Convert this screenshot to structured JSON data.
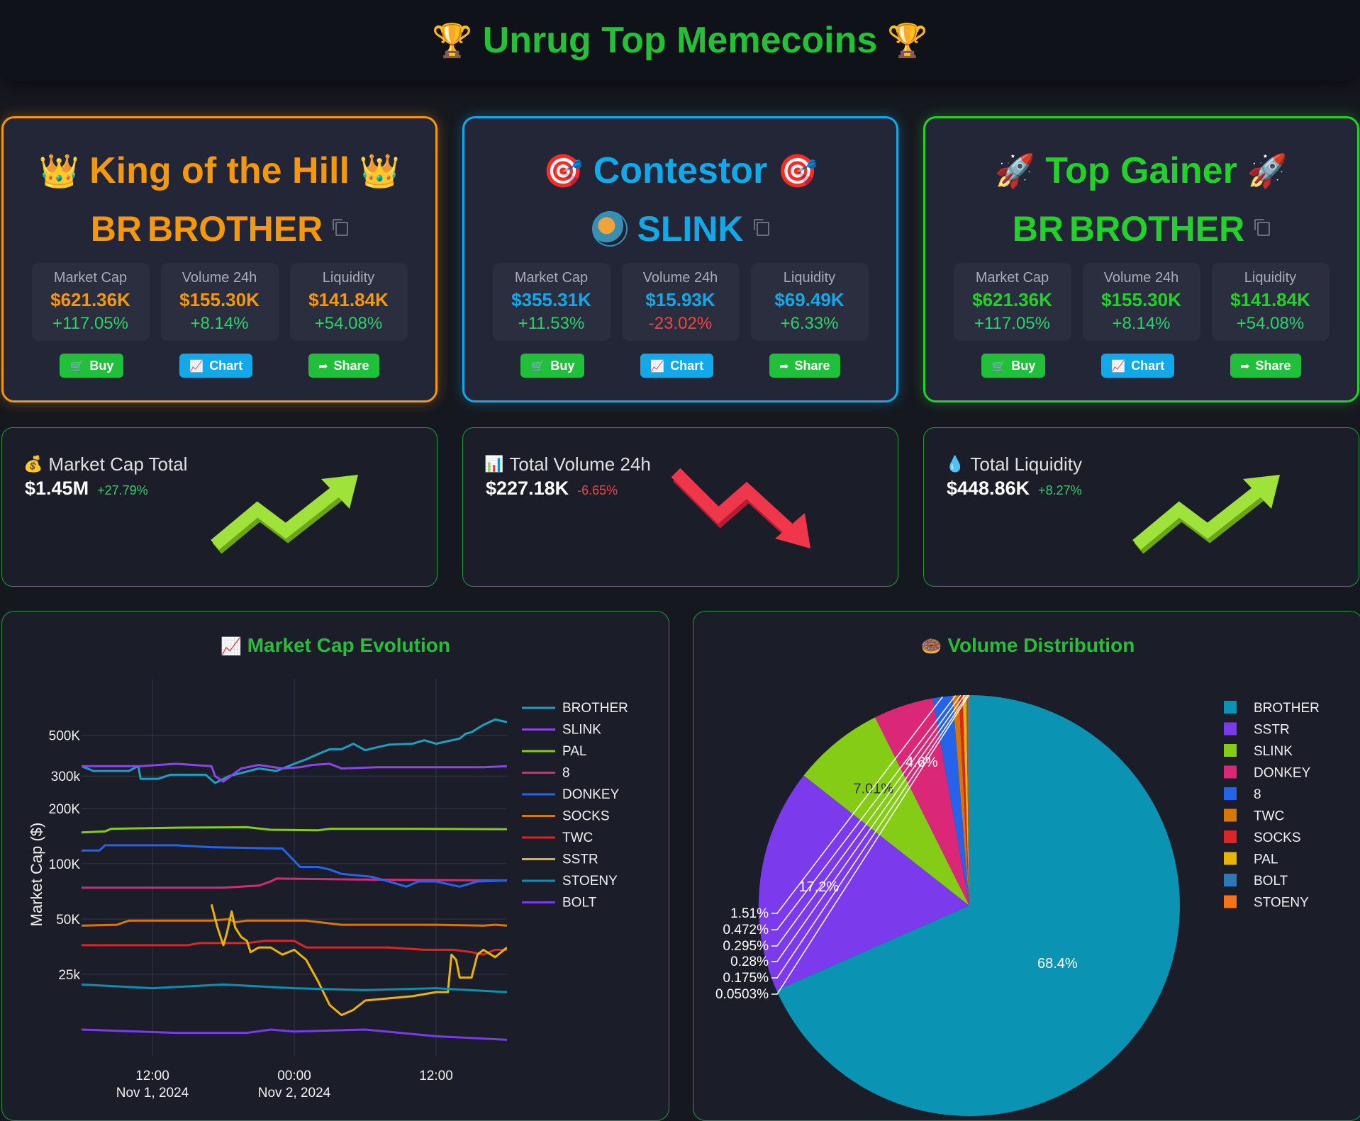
{
  "header": {
    "title": "Unrug Top Memecoins",
    "icon_left": "🏆",
    "icon_right": "🏆"
  },
  "cards": [
    {
      "id": "king",
      "title": "King of the Hill",
      "emoji": "👑",
      "coin_prefix": "BR",
      "coin": "BROTHER",
      "metrics": [
        {
          "label": "Market Cap",
          "value": "$621.36K",
          "change": "+117.05%",
          "dir": "pos"
        },
        {
          "label": "Volume 24h",
          "value": "$155.30K",
          "change": "+8.14%",
          "dir": "pos"
        },
        {
          "label": "Liquidity",
          "value": "$141.84K",
          "change": "+54.08%",
          "dir": "pos"
        }
      ],
      "buttons": {
        "buy": "Buy",
        "chart": "Chart",
        "share": "Share"
      }
    },
    {
      "id": "cont",
      "title": "Contestor",
      "emoji": "🎯",
      "coin_prefix": "",
      "coin": "SLINK",
      "metrics": [
        {
          "label": "Market Cap",
          "value": "$355.31K",
          "change": "+11.53%",
          "dir": "pos"
        },
        {
          "label": "Volume 24h",
          "value": "$15.93K",
          "change": "-23.02%",
          "dir": "neg"
        },
        {
          "label": "Liquidity",
          "value": "$69.49K",
          "change": "+6.33%",
          "dir": "pos"
        }
      ],
      "buttons": {
        "buy": "Buy",
        "chart": "Chart",
        "share": "Share"
      }
    },
    {
      "id": "gain",
      "title": "Top Gainer",
      "emoji": "🚀",
      "coin_prefix": "BR",
      "coin": "BROTHER",
      "metrics": [
        {
          "label": "Market Cap",
          "value": "$621.36K",
          "change": "+117.05%",
          "dir": "pos"
        },
        {
          "label": "Volume 24h",
          "value": "$155.30K",
          "change": "+8.14%",
          "dir": "pos"
        },
        {
          "label": "Liquidity",
          "value": "$141.84K",
          "change": "+54.08%",
          "dir": "pos"
        }
      ],
      "buttons": {
        "buy": "Buy",
        "chart": "Chart",
        "share": "Share"
      }
    }
  ],
  "stats": [
    {
      "icon": "💰",
      "label": "Market Cap Total",
      "value": "$1.45M",
      "change": "+27.79%",
      "dir": "up"
    },
    {
      "icon": "📊",
      "label": "Total Volume 24h",
      "value": "$227.18K",
      "change": "-6.65%",
      "dir": "down"
    },
    {
      "icon": "💧",
      "label": "Total Liquidity",
      "value": "$448.86K",
      "change": "+8.27%",
      "dir": "up"
    }
  ],
  "colors": {
    "king": "#f5980b",
    "contestor": "#12a9ea",
    "gainer": "#22d22a",
    "up_arrow": "#9fe33a",
    "down_arrow": "#f0364a"
  },
  "chart_data": [
    {
      "type": "line",
      "title": "Market Cap Evolution",
      "title_icon": "📈",
      "ylabel": "Market Cap ($)",
      "yscale": "log",
      "ylim": [
        9000,
        850000
      ],
      "yticks": [
        {
          "v": 25000,
          "label": "25k"
        },
        {
          "v": 50000,
          "label": "50K"
        },
        {
          "v": 100000,
          "label": "100K"
        },
        {
          "v": 200000,
          "label": "200K"
        },
        {
          "v": 300000,
          "label": "300k"
        },
        {
          "v": 500000,
          "label": "500K"
        }
      ],
      "xlim": [
        0,
        36
      ],
      "xticks": [
        {
          "v": 6,
          "label": "12:00",
          "sub": "Nov 1, 2024"
        },
        {
          "v": 18,
          "label": "00:00",
          "sub": "Nov 2, 2024"
        },
        {
          "v": 30,
          "label": "12:00",
          "sub": ""
        }
      ],
      "series": [
        {
          "name": "BROTHER",
          "color": "#1f9fbf",
          "points": [
            [
              0,
              340000
            ],
            [
              1,
              320000
            ],
            [
              4,
              320000
            ],
            [
              4.8,
              340000
            ],
            [
              5,
              290000
            ],
            [
              6.5,
              290000
            ],
            [
              7.5,
              305000
            ],
            [
              10.5,
              305000
            ],
            [
              11.3,
              275000
            ],
            [
              12.5,
              300000
            ],
            [
              15,
              330000
            ],
            [
              16.5,
              320000
            ],
            [
              18,
              350000
            ],
            [
              19,
              370000
            ],
            [
              20,
              395000
            ],
            [
              21,
              420000
            ],
            [
              22,
              420000
            ],
            [
              23,
              450000
            ],
            [
              24,
              415000
            ],
            [
              25,
              430000
            ],
            [
              26,
              445000
            ],
            [
              28,
              450000
            ],
            [
              29,
              470000
            ],
            [
              30,
              450000
            ],
            [
              31,
              465000
            ],
            [
              32,
              480000
            ],
            [
              32.5,
              510000
            ],
            [
              33,
              520000
            ],
            [
              34,
              570000
            ],
            [
              35,
              610000
            ],
            [
              36,
              590000
            ]
          ]
        },
        {
          "name": "SLINK",
          "color": "#8b45e8",
          "points": [
            [
              0,
              340000
            ],
            [
              5,
              340000
            ],
            [
              8,
              350000
            ],
            [
              11,
              340000
            ],
            [
              11.3,
              300000
            ],
            [
              12,
              280000
            ],
            [
              13.5,
              330000
            ],
            [
              15,
              345000
            ],
            [
              17,
              330000
            ],
            [
              18.5,
              335000
            ],
            [
              19.5,
              345000
            ],
            [
              21,
              350000
            ],
            [
              22,
              330000
            ],
            [
              25,
              335000
            ],
            [
              30,
              335000
            ],
            [
              34,
              335000
            ],
            [
              36,
              340000
            ]
          ]
        },
        {
          "name": "PAL",
          "color": "#84cc16",
          "points": [
            [
              0,
              148000
            ],
            [
              2,
              150000
            ],
            [
              2.5,
              155000
            ],
            [
              8,
              157000
            ],
            [
              14,
              158000
            ],
            [
              16,
              153000
            ],
            [
              20,
              152000
            ],
            [
              21,
              155000
            ],
            [
              28,
              155000
            ],
            [
              36,
              154000
            ]
          ]
        },
        {
          "name": "8",
          "color": "#db2777",
          "points": [
            [
              0,
              74000
            ],
            [
              6,
              74000
            ],
            [
              12,
              74000
            ],
            [
              15,
              76000
            ],
            [
              16,
              80000
            ],
            [
              16.5,
              83000
            ],
            [
              24,
              82000
            ],
            [
              36,
              81000
            ]
          ]
        },
        {
          "name": "DONKEY",
          "color": "#2563eb",
          "points": [
            [
              0,
              118000
            ],
            [
              1.5,
              118000
            ],
            [
              2,
              126000
            ],
            [
              8,
              126000
            ],
            [
              11,
              123000
            ],
            [
              17,
              121000
            ],
            [
              17.5,
              112000
            ],
            [
              18.5,
              96000
            ],
            [
              20,
              96000
            ],
            [
              21,
              93000
            ],
            [
              22,
              88000
            ],
            [
              24.5,
              85000
            ],
            [
              26,
              80000
            ],
            [
              27.5,
              75000
            ],
            [
              28.5,
              80000
            ],
            [
              30,
              80000
            ],
            [
              32,
              75000
            ],
            [
              33.5,
              80000
            ],
            [
              36,
              81000
            ]
          ]
        },
        {
          "name": "SOCKS",
          "color": "#d97706",
          "points": [
            [
              0,
              46000
            ],
            [
              3,
              46500
            ],
            [
              4,
              49000
            ],
            [
              11,
              49000
            ],
            [
              12.5,
              50000
            ],
            [
              13,
              48000
            ],
            [
              14,
              49000
            ],
            [
              19,
              49000
            ],
            [
              22,
              46500
            ],
            [
              30,
              46500
            ],
            [
              34,
              46000
            ],
            [
              35,
              46500
            ],
            [
              36,
              46000
            ]
          ]
        },
        {
          "name": "TWC",
          "color": "#dc2626",
          "points": [
            [
              0,
              36000
            ],
            [
              9,
              36000
            ],
            [
              10,
              37000
            ],
            [
              14,
              37000
            ],
            [
              15.5,
              38000
            ],
            [
              18,
              38000
            ],
            [
              19,
              35000
            ],
            [
              22,
              35000
            ],
            [
              26,
              35000
            ],
            [
              29,
              34000
            ],
            [
              31.5,
              34000
            ],
            [
              33,
              33000
            ],
            [
              34,
              32000
            ],
            [
              35,
              34000
            ],
            [
              36,
              34000
            ]
          ]
        },
        {
          "name": "SSTR",
          "color": "#eab308",
          "points": [
            [
              11,
              60000
            ],
            [
              11.5,
              45000
            ],
            [
              12,
              36000
            ],
            [
              12.3,
              42000
            ],
            [
              12.7,
              55000
            ],
            [
              13,
              45000
            ],
            [
              13.5,
              40000
            ],
            [
              14,
              38000
            ],
            [
              14.3,
              33000
            ],
            [
              15,
              35000
            ],
            [
              16,
              35000
            ],
            [
              17,
              32000
            ],
            [
              18,
              34000
            ],
            [
              19,
              30000
            ],
            [
              20,
              23000
            ],
            [
              21,
              17000
            ],
            [
              22,
              15000
            ],
            [
              23,
              16000
            ],
            [
              24,
              18000
            ],
            [
              26,
              18500
            ],
            [
              28,
              19000
            ],
            [
              30,
              20000
            ],
            [
              31,
              20000
            ],
            [
              31.3,
              32000
            ],
            [
              31.7,
              30000
            ],
            [
              32,
              24000
            ],
            [
              33,
              24000
            ],
            [
              33.5,
              32000
            ],
            [
              34,
              34000
            ],
            [
              35,
              31000
            ],
            [
              36,
              35000
            ]
          ]
        },
        {
          "name": "STOENY",
          "color": "#0891b2",
          "points": [
            [
              0,
              22000
            ],
            [
              6,
              21000
            ],
            [
              12,
              22000
            ],
            [
              18,
              21000
            ],
            [
              24,
              20500
            ],
            [
              30,
              21000
            ],
            [
              36,
              20000
            ]
          ]
        },
        {
          "name": "BOLT",
          "color": "#7c3aed",
          "points": [
            [
              0,
              12500
            ],
            [
              8,
              12000
            ],
            [
              14,
              12000
            ],
            [
              16,
              12500
            ],
            [
              18,
              12200
            ],
            [
              24,
              12500
            ],
            [
              30,
              11500
            ],
            [
              36,
              11000
            ]
          ]
        }
      ]
    },
    {
      "type": "pie",
      "title": "Volume Distribution",
      "title_icon": "🍩",
      "slices": [
        {
          "name": "BROTHER",
          "value": 68.4,
          "label": "68.4%",
          "color": "#0a93b2"
        },
        {
          "name": "SSTR",
          "value": 17.2,
          "label": "17.2%",
          "color": "#7c3aed"
        },
        {
          "name": "SLINK",
          "value": 7.01,
          "label": "7.01%",
          "color": "#84cc16"
        },
        {
          "name": "DONKEY",
          "value": 4.6,
          "label": "4.6%",
          "color": "#db2777"
        },
        {
          "name": "8",
          "value": 1.51,
          "label": "1.51%",
          "color": "#2563eb"
        },
        {
          "name": "TWC",
          "value": 0.472,
          "label": "0.472%",
          "color": "#d97706"
        },
        {
          "name": "SOCKS",
          "value": 0.295,
          "label": "0.295%",
          "color": "#dc2626"
        },
        {
          "name": "PAL",
          "value": 0.28,
          "label": "0.28%",
          "color": "#eab308"
        },
        {
          "name": "BOLT",
          "value": 0.175,
          "label": "0.175%",
          "color": "#2e78b5"
        },
        {
          "name": "STOENY",
          "value": 0.0503,
          "label": "0.0503%",
          "color": "#f97316"
        }
      ]
    }
  ]
}
